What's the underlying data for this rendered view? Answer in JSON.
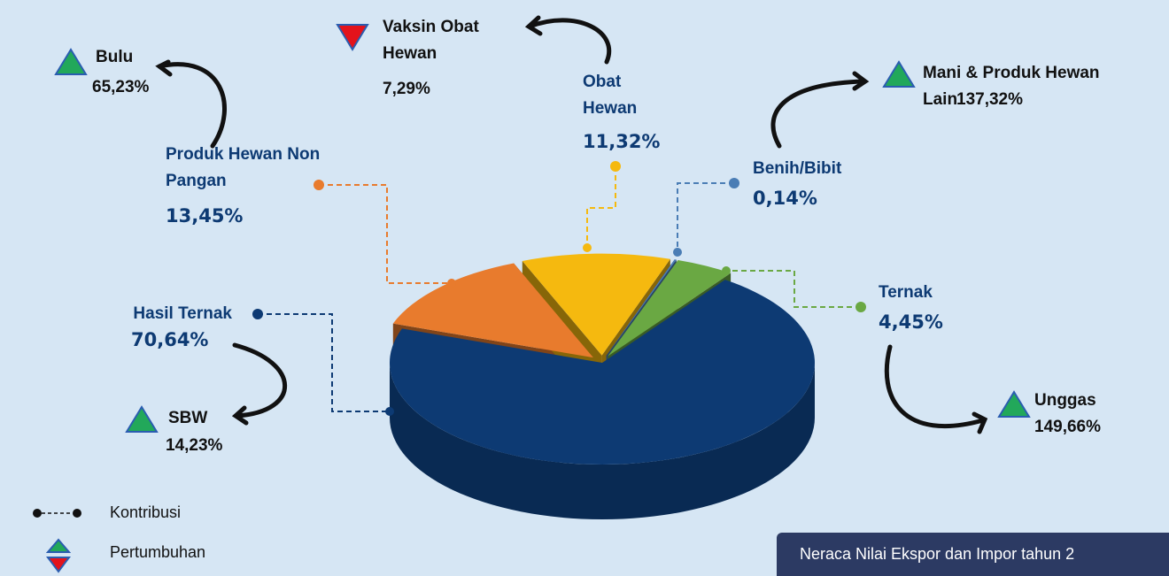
{
  "chart_data": {
    "type": "pie",
    "categories": [
      "Hasil Ternak",
      "Produk Hewan Non Pangan",
      "Obat Hewan",
      "Benih/Bibit",
      "Ternak"
    ],
    "values": [
      70.64,
      13.45,
      11.32,
      0.14,
      4.45
    ],
    "value_labels": [
      "70,64%",
      "13,45%",
      "11,32%",
      "0,14%",
      "4,45%"
    ],
    "colors": [
      "#0d3a73",
      "#e87b2d",
      "#f5b90f",
      "#4a7db5",
      "#6aa843"
    ],
    "annotations": [
      {
        "text": "Bulu",
        "label": "65,23%",
        "direction": "up"
      },
      {
        "text": "Vaksin Obat Hewan",
        "label": "7,29%",
        "direction": "down"
      },
      {
        "text": "Mani & Produk Hewan Lain",
        "label": "137,32%",
        "direction": "up"
      },
      {
        "text": "Unggas",
        "label": "149,66%",
        "direction": "up"
      },
      {
        "text": "SBW",
        "label": "14,23%",
        "direction": "up"
      }
    ],
    "legend": [
      "Kontribusi",
      "Pertumbuhan"
    ]
  },
  "footer": "Neraca Nilai Ekspor dan Impor tahun 2"
}
